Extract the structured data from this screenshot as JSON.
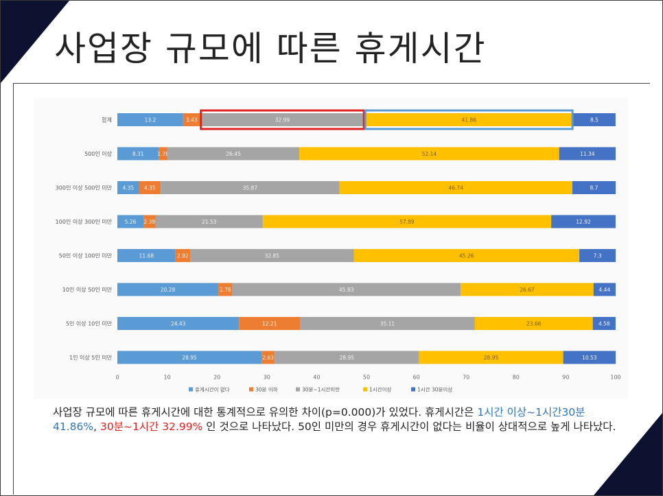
{
  "title": "사업장 규모에 따른 휴게시간",
  "description": {
    "part1": "사업장 규모에 따른 휴게시간에 대한 통계적으로 유의한 차이(p=0.000)가 있었다. 휴게시간은 ",
    "highlight_blue": "1시간 이상~1시간30분 41.86%",
    "sep": ", ",
    "highlight_red": "30분~1시간 32.99%",
    "part2": " 인 것으로 나타났다. 50인 미만의 경우 휴게시간이 없다는 비율이 상대적으로 높게 나타났다."
  },
  "colors": {
    "none": "#5b9bd5",
    "under30": "#ed7d31",
    "m30to60": "#a5a5a5",
    "h1plus": "#ffc000",
    "h1_30plus": "#4472c4",
    "highlight_red": "#e02020",
    "highlight_blue": "#5b9bd5"
  },
  "chart_data": {
    "type": "bar",
    "orientation": "horizontal",
    "stacked": true,
    "categories": [
      "합계",
      "500인 이상",
      "300인 이상 500인 미만",
      "100인 이상 300인 미만",
      "50인 이상 100인 미만",
      "10인 이상 50인 미만",
      "5인 이상 10인 미만",
      "1인 이상 5인 미만"
    ],
    "series": [
      {
        "name": "휴게시간이 없다",
        "values": [
          13.2,
          8.31,
          4.35,
          5.26,
          11.68,
          20.28,
          24.43,
          28.95
        ]
      },
      {
        "name": "30분 이하",
        "values": [
          3.43,
          1.76,
          4.35,
          2.39,
          2.92,
          2.78,
          12.21,
          2.63
        ]
      },
      {
        "name": "30분~1시간미만",
        "values": [
          32.99,
          26.45,
          35.87,
          21.53,
          32.85,
          45.83,
          35.11,
          28.95
        ]
      },
      {
        "name": "1시간이상",
        "values": [
          41.86,
          52.14,
          46.74,
          57.89,
          45.26,
          26.67,
          23.66,
          28.95
        ]
      },
      {
        "name": "1시간 30분이상",
        "values": [
          8.5,
          11.34,
          8.7,
          12.92,
          7.3,
          4.44,
          4.58,
          10.53
        ]
      }
    ],
    "value_labels": [
      [
        "13.2",
        "3.43",
        "32.99",
        "41.86",
        "8.5"
      ],
      [
        "8.31",
        "1.76",
        "26.45",
        "52.14",
        "11.34"
      ],
      [
        "4.35",
        "4.35",
        "35.87",
        "46.74",
        "8.7"
      ],
      [
        "5.26",
        "2.39",
        "21.53",
        "57.89",
        "12.92"
      ],
      [
        "11.68",
        "2.92",
        "32.85",
        "45.26",
        "7.3"
      ],
      [
        "20.28",
        "2.78",
        "45.83",
        "26.67",
        "4.44"
      ],
      [
        "24.43",
        "12.21",
        "35.11",
        "23.66",
        "4.58"
      ],
      [
        "28.95",
        "2.63",
        "28.95",
        "28.95",
        "10.53"
      ]
    ],
    "xlim": [
      0,
      100
    ],
    "xticks": [
      0,
      10,
      20,
      30,
      40,
      50,
      60,
      70,
      80,
      90,
      100
    ],
    "legend_position": "bottom",
    "grid": false,
    "annotations": [
      {
        "row": 0,
        "series": 2,
        "color": "#e02020"
      },
      {
        "row": 0,
        "series": 3,
        "color": "#5b9bd5"
      }
    ]
  }
}
